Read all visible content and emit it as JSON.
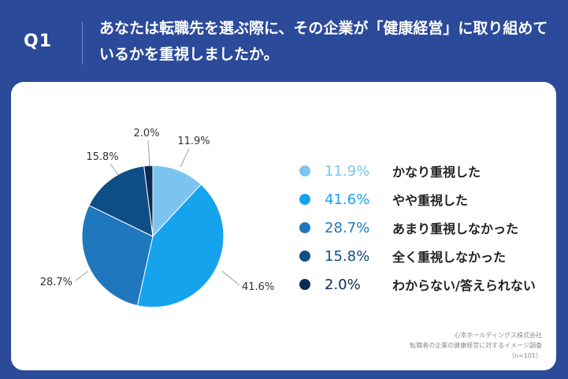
{
  "question": {
    "label": "Q1",
    "text": "あなたは転職先を選ぶ際に、その企業が「健康経営」に取り組めているかを重視しましたか。"
  },
  "chart_data": {
    "type": "pie",
    "slices": [
      {
        "value": 11.9,
        "pct_label": "11.9%",
        "label": "かなり重視した",
        "color": "#7cc4f0"
      },
      {
        "value": 41.6,
        "pct_label": "41.6%",
        "label": "やや重視した",
        "color": "#16a3ee"
      },
      {
        "value": 28.7,
        "pct_label": "28.7%",
        "label": "あまり重視しなかった",
        "color": "#1f78bd"
      },
      {
        "value": 15.8,
        "pct_label": "15.8%",
        "label": "全く重視しなかった",
        "color": "#0f4d86"
      },
      {
        "value": 2.0,
        "pct_label": "2.0%",
        "label": "わからない/答えられない",
        "color": "#0a2c54"
      }
    ],
    "start": "12 o'clock, clockwise",
    "legend_position": "right"
  },
  "credit": {
    "line1": "心幸ホールディングス株式会社",
    "line2": "転職者の企業の健康経営に対するイメージ調査",
    "line3": "（n=101）"
  }
}
